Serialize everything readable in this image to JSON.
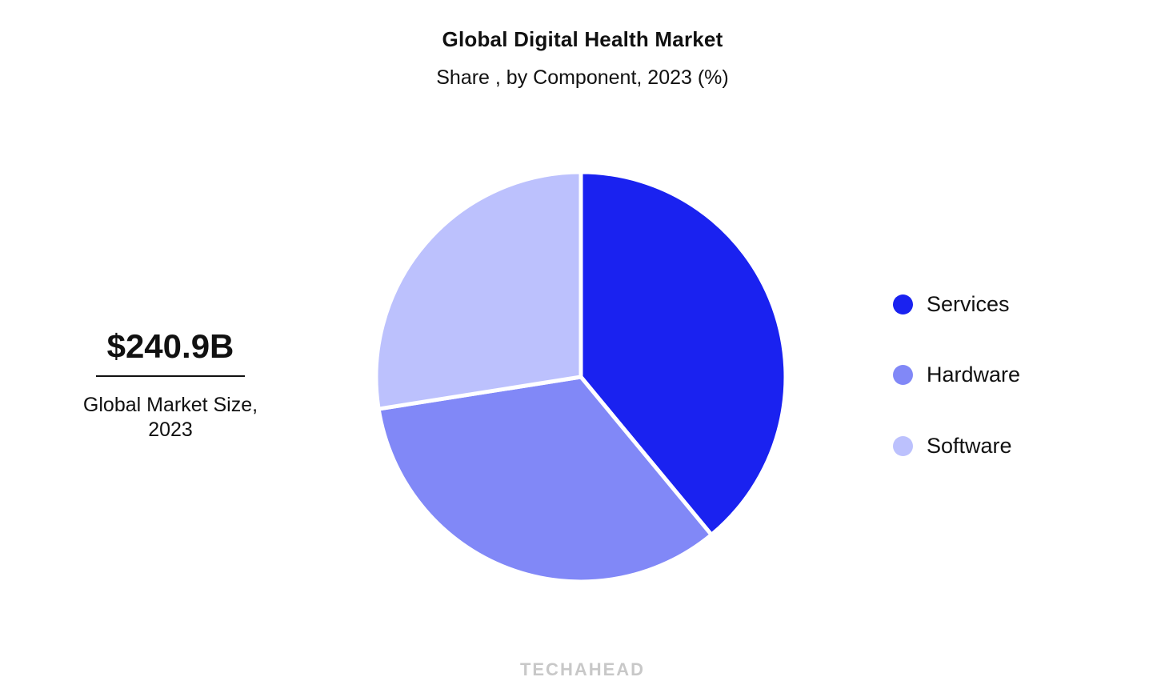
{
  "header": {
    "title": "Global Digital Health Market",
    "subtitle": "Share , by Component, 2023 (%)"
  },
  "kpi": {
    "value": "$240.9B",
    "label_line1": "Global Market Size,",
    "label_line2": "2023"
  },
  "legend": {
    "items": [
      {
        "label": "Services",
        "color": "#1a22f0"
      },
      {
        "label": "Hardware",
        "color": "#8188f7"
      },
      {
        "label": "Software",
        "color": "#bcc1fd"
      }
    ]
  },
  "watermark": "TECHAHEAD",
  "chart_data": {
    "type": "pie",
    "title": "Global Digital Health Market",
    "subtitle": "Share , by Component, 2023 (%)",
    "categories": [
      "Services",
      "Hardware",
      "Software"
    ],
    "values": [
      39.0,
      33.5,
      27.5
    ],
    "colors": [
      "#1a22f0",
      "#8188f7",
      "#bcc1fd"
    ],
    "start_angle": "12 o'clock, clockwise",
    "legend_position": "right",
    "annotation": "$240.9B Global Market Size, 2023"
  }
}
